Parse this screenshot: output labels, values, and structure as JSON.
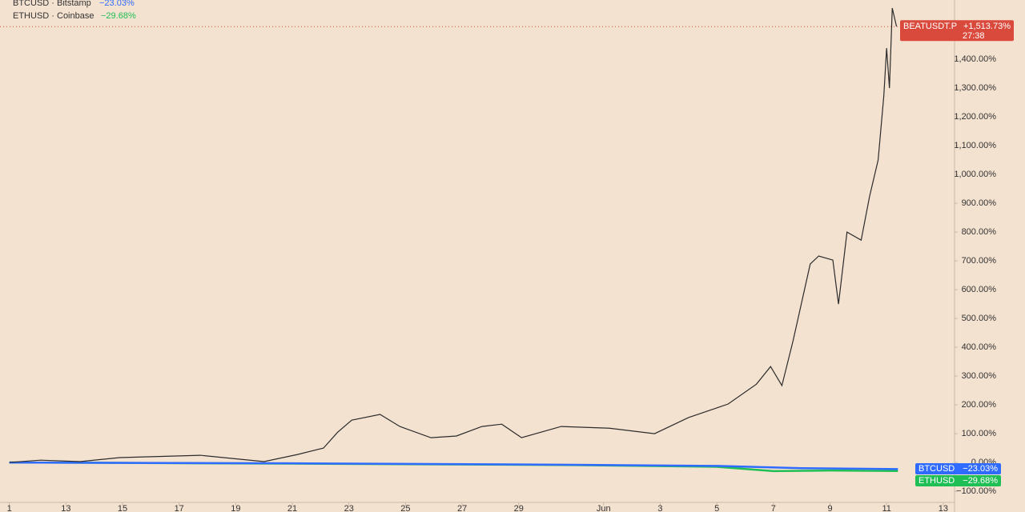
{
  "chart_data": {
    "type": "line",
    "xlim": [
      -0.33,
      33.4
    ],
    "ylim": [
      -172,
      1606
    ],
    "xticks": [
      {
        "value": 0,
        "label": "1"
      },
      {
        "value": 2,
        "label": "13"
      },
      {
        "value": 4,
        "label": "15"
      },
      {
        "value": 6,
        "label": "17"
      },
      {
        "value": 8,
        "label": "19"
      },
      {
        "value": 10,
        "label": "21"
      },
      {
        "value": 12,
        "label": "23"
      },
      {
        "value": 14,
        "label": "25"
      },
      {
        "value": 16,
        "label": "27"
      },
      {
        "value": 18,
        "label": "29"
      },
      {
        "value": 21,
        "label": "Jun"
      },
      {
        "value": 23,
        "label": "3"
      },
      {
        "value": 25,
        "label": "5"
      },
      {
        "value": 27,
        "label": "7"
      },
      {
        "value": 29,
        "label": "9"
      },
      {
        "value": 31,
        "label": "11"
      },
      {
        "value": 33,
        "label": "13"
      }
    ],
    "yticks": [
      {
        "value": -100,
        "label": "−100.00%"
      },
      {
        "value": 0,
        "label": "0.00%"
      },
      {
        "value": 100,
        "label": "100.00%"
      },
      {
        "value": 200,
        "label": "200.00%"
      },
      {
        "value": 300,
        "label": "300.00%"
      },
      {
        "value": 400,
        "label": "400.00%"
      },
      {
        "value": 500,
        "label": "500.00%"
      },
      {
        "value": 600,
        "label": "600.00%"
      },
      {
        "value": 700,
        "label": "700.00%"
      },
      {
        "value": 800,
        "label": "800.00%"
      },
      {
        "value": 900,
        "label": "900.00%"
      },
      {
        "value": 1000,
        "label": "1,000.00%"
      },
      {
        "value": 1100,
        "label": "1,100.00%"
      },
      {
        "value": 1200,
        "label": "1,200.00%"
      },
      {
        "value": 1300,
        "label": "1,300.00%"
      },
      {
        "value": 1400,
        "label": "1,400.00%"
      }
    ],
    "grid": false,
    "series": [
      {
        "name": "BEATUSDT.P",
        "color": "#2b2b2b",
        "badge_color": "#d9493c",
        "last_value": 1513.73,
        "last_label": "+1,513.73%",
        "countdown": "27:38",
        "x": [
          0,
          1.1,
          2.5,
          3.9,
          6.75,
          9,
          10.2,
          11.1,
          11.6,
          12.1,
          13.1,
          13.8,
          14.9,
          15.8,
          16.7,
          17.4,
          18.1,
          19.5,
          21.2,
          22.8,
          24.0,
          25.4,
          26.4,
          26.9,
          27.3,
          27.7,
          28.3,
          28.6,
          29.1,
          29.3,
          29.6,
          30.1,
          30.4,
          30.7,
          30.9,
          31.0,
          31.1,
          31.2,
          31.35
        ],
        "values": [
          0,
          8,
          3,
          17,
          25,
          3,
          28,
          50,
          105,
          147,
          167,
          125,
          86,
          92,
          125,
          133,
          86,
          125,
          119,
          100,
          156,
          203,
          272,
          333,
          267,
          425,
          689,
          717,
          703,
          550,
          800,
          772,
          925,
          1050,
          1272,
          1439,
          1300,
          1578,
          1514
        ]
      },
      {
        "name": "BTCUSD",
        "legend_label": "BTCUSD · Bitstamp",
        "color": "#2f6bff",
        "badge_color": "#2f6bff",
        "last_value": -23.03,
        "last_label": "−23.03%",
        "x": [
          0,
          10,
          20,
          25,
          28,
          31.4
        ],
        "values": [
          0,
          -3,
          -8,
          -12,
          -20,
          -23
        ]
      },
      {
        "name": "ETHUSD",
        "legend_label": "ETHUSD · Coinbase",
        "color": "#1fbf55",
        "badge_color": "#1fbf55",
        "last_value": -29.68,
        "last_label": "−29.68%",
        "x": [
          0,
          10,
          20,
          25,
          27,
          29,
          31.4
        ],
        "values": [
          0,
          -4,
          -9,
          -15,
          -30,
          -28,
          -29.68
        ]
      }
    ]
  }
}
